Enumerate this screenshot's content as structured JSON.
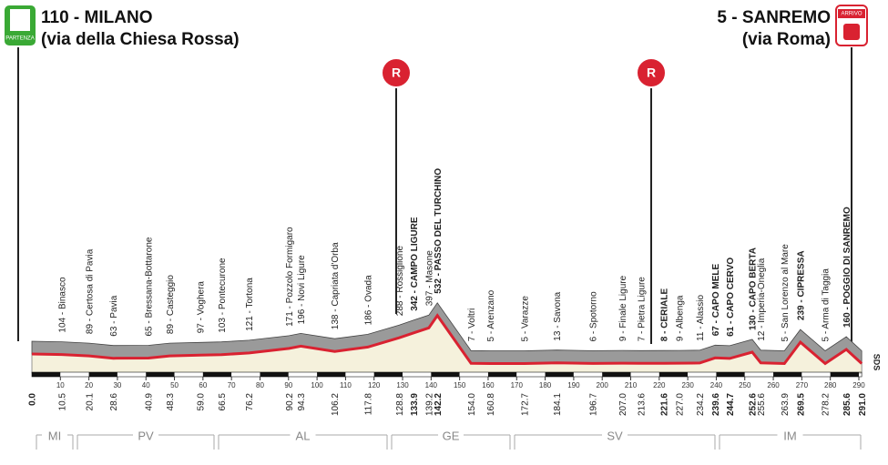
{
  "header": {
    "start": {
      "title": "110 - MILANO",
      "subtitle": "(via della Chiesa Rossa)",
      "badge": "PARTENZA"
    },
    "finish": {
      "title": "5 - SANREMO",
      "subtitle": "(via Roma)",
      "badge": "ARRIVO"
    }
  },
  "markers": [
    {
      "label": "R"
    },
    {
      "label": "R"
    }
  ],
  "km_start": "0.0",
  "km_end": "291.0",
  "waypoints": [
    {
      "km": "10.5",
      "label": "104 - Binasco"
    },
    {
      "km": "20.1",
      "label": "89 - Certosa di Pavia"
    },
    {
      "km": "28.6",
      "label": "63 - Pavia"
    },
    {
      "km": "40.9",
      "label": "65 - Bressana-Bottarone"
    },
    {
      "km": "48.3",
      "label": "89 - Casteggio"
    },
    {
      "km": "59.0",
      "label": "97 - Voghera"
    },
    {
      "km": "66.5",
      "label": "103 - Pontecurone"
    },
    {
      "km": "76.2",
      "label": "121 - Tortona"
    },
    {
      "km": "90.2",
      "label": "171 - Pozzolo Formigaro"
    },
    {
      "km": "94.3",
      "label": "196 - Novi Ligure"
    },
    {
      "km": "106.2",
      "label": "138 - Capriata d'Orba"
    },
    {
      "km": "117.8",
      "label": "186 - Ovada"
    },
    {
      "km": "128.8",
      "label": "288 - Rossiglione"
    },
    {
      "km": "133.9",
      "label": "342 - CAMPO LIGURE",
      "bold": true
    },
    {
      "km": "139.2",
      "label": "397 - Masone"
    },
    {
      "km": "142.2",
      "label": "532 - PASSO DEL TURCHINO",
      "bold": true
    },
    {
      "km": "154.0",
      "label": "7 - Voltri"
    },
    {
      "km": "160.8",
      "label": "5 - Arenzano"
    },
    {
      "km": "172.7",
      "label": "5 - Varazze"
    },
    {
      "km": "184.1",
      "label": "13 - Savona"
    },
    {
      "km": "196.7",
      "label": "6 - Spotorno"
    },
    {
      "km": "207.0",
      "label": "9 - Finale Ligure"
    },
    {
      "km": "213.6",
      "label": "7 - Pietra Ligure"
    },
    {
      "km": "221.6",
      "label": "8 - CERIALE",
      "bold": true
    },
    {
      "km": "227.0",
      "label": "9 - Albenga"
    },
    {
      "km": "234.2",
      "label": "11 - Alassio"
    },
    {
      "km": "239.6",
      "label": "67 - CAPO MELE",
      "bold": true
    },
    {
      "km": "244.7",
      "label": "61 - CAPO CERVO",
      "bold": true
    },
    {
      "km": "252.6",
      "label": "130 - CAPO BERTA",
      "bold": true
    },
    {
      "km": "255.6",
      "label": "12 - Imperia-Oneglia"
    },
    {
      "km": "263.9",
      "label": "5 - San Lorenzo al Mare"
    },
    {
      "km": "269.5",
      "label": "239 - CIPRESSA",
      "bold": true
    },
    {
      "km": "278.2",
      "label": "5 - Arma di Taggia"
    },
    {
      "km": "285.6",
      "label": "160 - POGGIO DI SANREMO",
      "bold": true
    }
  ],
  "km_ticks": [
    10,
    20,
    30,
    40,
    50,
    60,
    70,
    80,
    90,
    100,
    110,
    120,
    130,
    140,
    150,
    160,
    170,
    180,
    190,
    200,
    210,
    220,
    230,
    240,
    250,
    260,
    270,
    280,
    290
  ],
  "regions": [
    "MI",
    "PV",
    "AL",
    "GE",
    "SV",
    "IM"
  ],
  "side_label": "SDS"
}
